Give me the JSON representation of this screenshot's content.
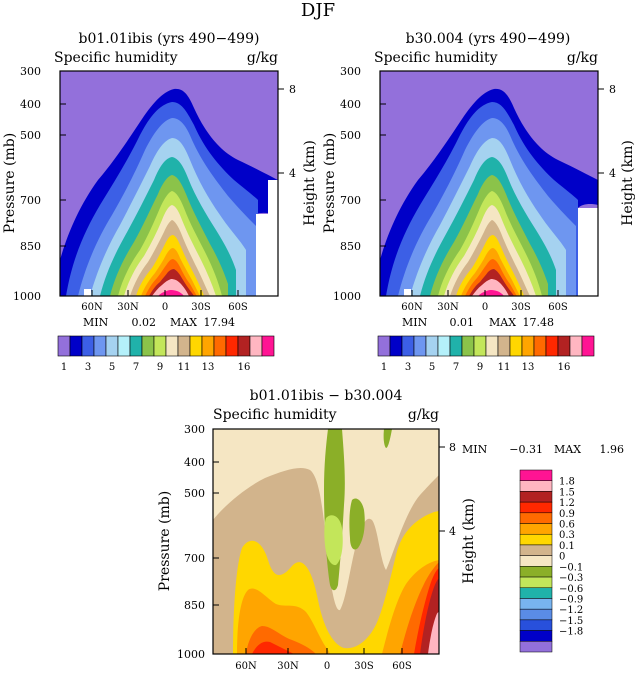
{
  "figure": {
    "title": "DJF"
  },
  "palettes": {
    "main": [
      "#9370DB",
      "#0000C8",
      "#3C5FE6",
      "#6E96F0",
      "#A5D2F0",
      "#B4F0FA",
      "#20B2AA",
      "#8BC34A",
      "#C3E65A",
      "#F5E6C3",
      "#D2B48C",
      "#FFD700",
      "#FFA500",
      "#FF6A00",
      "#FF2800",
      "#B22222",
      "#FFB6C1",
      "#FF1493"
    ],
    "diff": [
      "#9370DB",
      "#0000C8",
      "#2850DC",
      "#5A8CE6",
      "#78B4F0",
      "#20B2AA",
      "#C3E65A",
      "#8BAF28",
      "#F5E6C3",
      "#D2B48C",
      "#FFD700",
      "#FFA500",
      "#FF6A00",
      "#FF2800",
      "#B22222",
      "#FFB6C1",
      "#FF1493"
    ]
  },
  "panels": [
    {
      "id": "left",
      "title": "b01.01ibis (yrs 490−499)",
      "left_label": "Specific humidity",
      "right_label": "g/kg",
      "y_axis_label": "Pressure (mb)",
      "y2_axis_label": "Height (km)",
      "min_label": "MIN",
      "min_value": "0.02",
      "max_label": "MAX",
      "max_value": "17.94",
      "colorbar_labels": [
        "1",
        "3",
        "5",
        "7",
        "9",
        "11",
        "13",
        "16"
      ]
    },
    {
      "id": "right",
      "title": "b30.004 (yrs 490−499)",
      "left_label": "Specific humidity",
      "right_label": "g/kg",
      "y_axis_label": "Pressure (mb)",
      "y2_axis_label": "Height (km)",
      "min_label": "MIN",
      "min_value": "0.01",
      "max_label": "MAX",
      "max_value": "17.48",
      "colorbar_labels": [
        "1",
        "3",
        "5",
        "7",
        "9",
        "11",
        "13",
        "16"
      ]
    },
    {
      "id": "diff",
      "title": "b01.01ibis − b30.004",
      "left_label": "Specific humidity",
      "right_label": "g/kg",
      "y_axis_label": "Pressure (mb)",
      "y2_axis_label": "Height (km)",
      "min_label": "MIN",
      "min_value": "−0.31",
      "max_label": "MAX",
      "max_value": "1.96",
      "colorbar_labels": [
        "1.8",
        "1.5",
        "1.2",
        "0.9",
        "0.6",
        "0.3",
        "0.1",
        "0",
        "−0.1",
        "−0.3",
        "−0.6",
        "−0.9",
        "−1.2",
        "−1.5",
        "−1.8"
      ]
    }
  ],
  "axes": {
    "pressure_ticks": [
      "300",
      "400",
      "500",
      "700",
      "850",
      "1000"
    ],
    "height_ticks": [
      "8",
      "4"
    ],
    "lat_ticks": [
      "60N",
      "30N",
      "0",
      "30S",
      "60S"
    ]
  },
  "chart_data": [
    {
      "type": "heatmap",
      "title": "b01.01ibis (yrs 490−499)",
      "variable": "Specific humidity",
      "units": "g/kg",
      "x_axis": {
        "ticks": [
          "60N",
          "30N",
          "0",
          "30S",
          "60S"
        ],
        "range": [
          "90N",
          "90S"
        ]
      },
      "y_axis": {
        "label": "Pressure (mb)",
        "ticks": [
          300,
          400,
          500,
          700,
          850,
          1000
        ],
        "range": [
          1000,
          300
        ]
      },
      "y2_axis": {
        "label": "Height (km)",
        "ticks": [
          4,
          8
        ]
      },
      "contour_levels": [
        1,
        2,
        3,
        4,
        5,
        6,
        7,
        8,
        9,
        10,
        11,
        12,
        13,
        14,
        15,
        16,
        17
      ],
      "min": 0.02,
      "max": 17.94
    },
    {
      "type": "heatmap",
      "title": "b30.004 (yrs 490−499)",
      "variable": "Specific humidity",
      "units": "g/kg",
      "x_axis": {
        "ticks": [
          "60N",
          "30N",
          "0",
          "30S",
          "60S"
        ],
        "range": [
          "90N",
          "90S"
        ]
      },
      "y_axis": {
        "label": "Pressure (mb)",
        "ticks": [
          300,
          400,
          500,
          700,
          850,
          1000
        ],
        "range": [
          1000,
          300
        ]
      },
      "y2_axis": {
        "label": "Height (km)",
        "ticks": [
          4,
          8
        ]
      },
      "contour_levels": [
        1,
        2,
        3,
        4,
        5,
        6,
        7,
        8,
        9,
        10,
        11,
        12,
        13,
        14,
        15,
        16,
        17
      ],
      "min": 0.01,
      "max": 17.48
    },
    {
      "type": "heatmap",
      "title": "b01.01ibis − b30.004",
      "variable": "Specific humidity",
      "units": "g/kg",
      "x_axis": {
        "ticks": [
          "60N",
          "30N",
          "0",
          "30S",
          "60S"
        ],
        "range": [
          "90N",
          "90S"
        ]
      },
      "y_axis": {
        "label": "Pressure (mb)",
        "ticks": [
          300,
          400,
          500,
          700,
          850,
          1000
        ],
        "range": [
          1000,
          300
        ]
      },
      "y2_axis": {
        "label": "Height (km)",
        "ticks": [
          4,
          8
        ]
      },
      "contour_levels": [
        -1.8,
        -1.5,
        -1.2,
        -0.9,
        -0.6,
        -0.3,
        -0.1,
        0,
        0.1,
        0.3,
        0.6,
        0.9,
        1.2,
        1.5,
        1.8
      ],
      "min": -0.31,
      "max": 1.96
    }
  ]
}
